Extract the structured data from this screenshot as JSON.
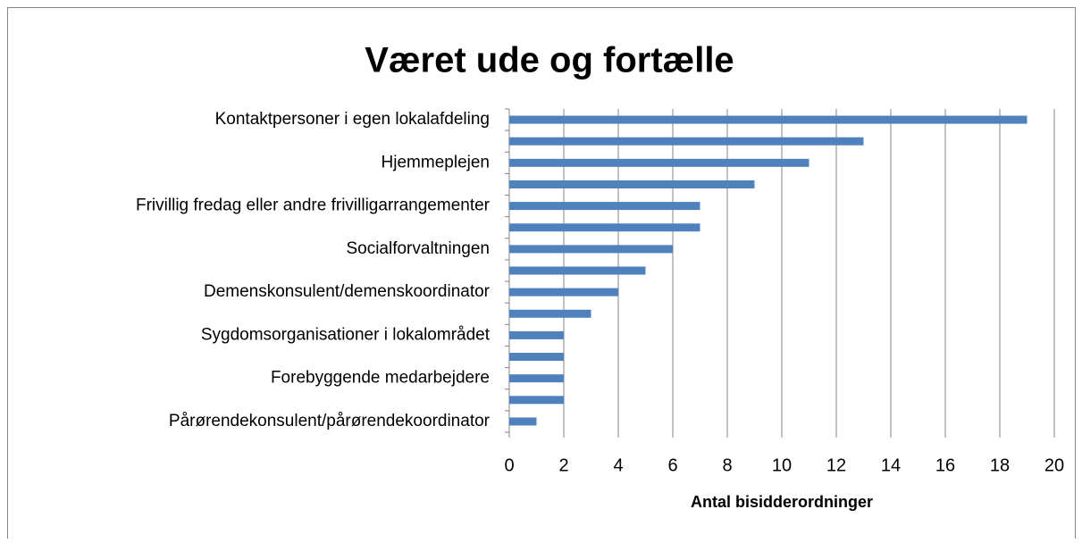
{
  "chart_data": {
    "type": "barh",
    "title": "Været ude og fortælle",
    "categories": [
      "Kontaktpersoner i egen lokalafdeling",
      null,
      "Hjemmeplejen ",
      null,
      "Frivillig fredag eller andre frivilligarrangementer",
      null,
      "Socialforvaltningen",
      null,
      "Demenskonsulent/demenskoordinator",
      null,
      "Sygdomsorganisationer i lokalområdet",
      null,
      "Forebyggende medarbejdere",
      null,
      "Pårørendekonsulent/pårørendekoordinator"
    ],
    "values": [
      19,
      13,
      11,
      9,
      7,
      7,
      6,
      5,
      4,
      3,
      2,
      2,
      2,
      2,
      1
    ],
    "color": "#4f81bd",
    "x_label": "Antal bisidderordninger",
    "xlim": [
      0,
      20
    ],
    "xticks": [
      0,
      2,
      4,
      6,
      8,
      10,
      12,
      14,
      16,
      18,
      20
    ],
    "grid": true
  }
}
